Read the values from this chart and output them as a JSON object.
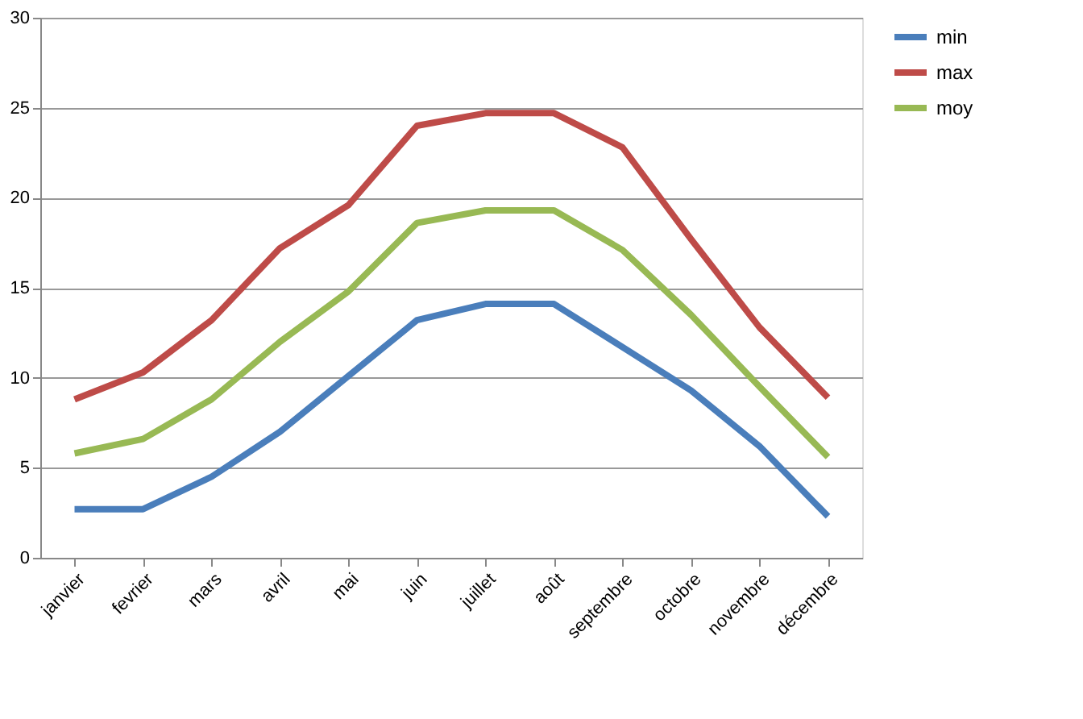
{
  "chart_data": {
    "type": "line",
    "categories": [
      "janvier",
      "fevrier",
      "mars",
      "avril",
      "mai",
      "juin",
      "juillet",
      "août",
      "septembre",
      "octobre",
      "novembre",
      "décembre"
    ],
    "series": [
      {
        "name": "min",
        "color": "#4a7ebb",
        "values": [
          2.7,
          2.7,
          4.5,
          7,
          10.1,
          13.2,
          14.1,
          14.1,
          11.7,
          9.3,
          6.2,
          2.3
        ]
      },
      {
        "name": "max",
        "color": "#be4b48",
        "values": [
          8.8,
          10.3,
          13.2,
          17.2,
          19.6,
          24,
          24.7,
          24.7,
          22.8,
          17.7,
          12.8,
          8.9
        ]
      },
      {
        "name": "moy",
        "color": "#98b954",
        "values": [
          5.8,
          6.6,
          8.8,
          12,
          14.8,
          18.6,
          19.3,
          19.3,
          17.1,
          13.5,
          9.5,
          5.6
        ]
      }
    ],
    "ylim": [
      0,
      30
    ],
    "yticks": [
      0,
      5,
      10,
      15,
      20,
      25,
      30
    ],
    "grid": "y",
    "legend": "right",
    "marker": "none",
    "line_style": "solid"
  }
}
